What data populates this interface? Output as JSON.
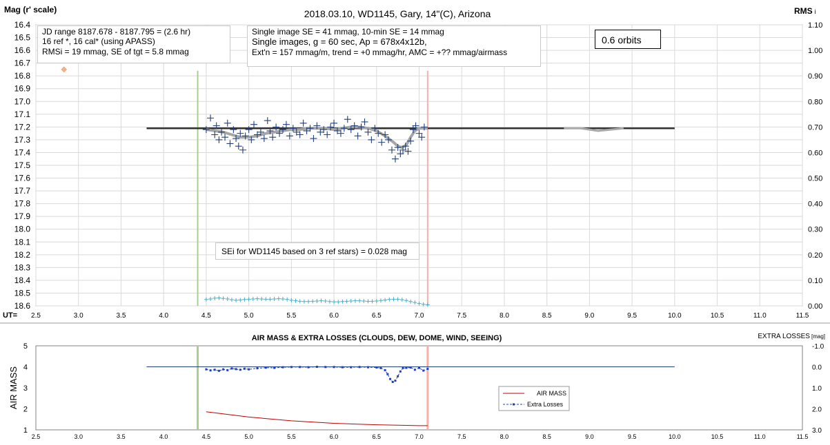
{
  "chart_data": [
    {
      "type": "scatter",
      "title": "2018.03.10,  WD1145, Gary, 14\"(C), Arizona",
      "ylabel": "Mag (r' scale)",
      "y2label": "RMS",
      "y2label_suffix": "i",
      "xlabel": "UT=",
      "xlim": [
        2.5,
        11.5
      ],
      "ylim": [
        18.6,
        16.4
      ],
      "y2lim": [
        0.0,
        1.1
      ],
      "x_ticks": [
        "2.5",
        "3.0",
        "3.5",
        "4.0",
        "4.5",
        "5.0",
        "5.5",
        "6.0",
        "6.5",
        "7.0",
        "7.5",
        "8.0",
        "8.5",
        "9.0",
        "9.5",
        "10.0",
        "10.5",
        "11.0",
        "11.5"
      ],
      "y_ticks": [
        "16.4",
        "16.5",
        "16.6",
        "16.7",
        "16.8",
        "16.9",
        "17.0",
        "17.1",
        "17.2",
        "17.3",
        "17.4",
        "17.5",
        "17.6",
        "17.7",
        "17.8",
        "17.9",
        "18.0",
        "18.1",
        "18.2",
        "18.3",
        "18.4",
        "18.5",
        "18.6"
      ],
      "y2_ticks": [
        "0.00",
        "0.10",
        "0.20",
        "0.30",
        "0.40",
        "0.50",
        "0.60",
        "0.70",
        "0.80",
        "0.90",
        "1.00",
        "1.10"
      ],
      "grid": true,
      "vlines": [
        {
          "x": 4.4,
          "color": "#a8d08d"
        },
        {
          "x": 7.1,
          "color": "#f4b1aa"
        }
      ],
      "reference_line": {
        "x": [
          3.8,
          10.0
        ],
        "y": 17.21,
        "color": "#333333"
      },
      "model_dip": {
        "x": [
          8.7,
          8.9,
          9.1,
          9.25,
          9.4
        ],
        "y": [
          17.21,
          17.21,
          17.23,
          17.22,
          17.21
        ],
        "color": "#aaaaaa"
      },
      "outlier": {
        "x": 2.83,
        "y": 16.75,
        "color": "#f4b183"
      },
      "trend": {
        "x": [
          4.5,
          4.6,
          4.7,
          4.8,
          4.9,
          5.0,
          5.1,
          5.2,
          5.3,
          5.4,
          5.5,
          5.6,
          5.7,
          5.8,
          5.9,
          6.0,
          6.1,
          6.2,
          6.3,
          6.4,
          6.5,
          6.6,
          6.7,
          6.75,
          6.8,
          6.85,
          6.9,
          6.95,
          7.0,
          7.05,
          7.1
        ],
        "y": [
          17.22,
          17.23,
          17.24,
          17.26,
          17.28,
          17.28,
          17.27,
          17.25,
          17.24,
          17.23,
          17.22,
          17.22,
          17.21,
          17.21,
          17.21,
          17.22,
          17.21,
          17.2,
          17.2,
          17.21,
          17.23,
          17.27,
          17.32,
          17.35,
          17.36,
          17.34,
          17.28,
          17.23,
          17.21,
          17.21,
          17.21
        ],
        "color": "#a6a6a6"
      },
      "series": [
        {
          "marker": "plus",
          "color": "#1f3e7a",
          "x": [
            4.5,
            4.55,
            4.6,
            4.62,
            4.65,
            4.68,
            4.72,
            4.75,
            4.78,
            4.82,
            4.85,
            4.88,
            4.9,
            4.93,
            4.96,
            5.0,
            5.03,
            5.06,
            5.1,
            5.14,
            5.18,
            5.22,
            5.25,
            5.28,
            5.32,
            5.36,
            5.4,
            5.44,
            5.48,
            5.52,
            5.56,
            5.6,
            5.64,
            5.68,
            5.72,
            5.76,
            5.8,
            5.84,
            5.88,
            5.92,
            5.96,
            6.0,
            6.04,
            6.08,
            6.12,
            6.16,
            6.2,
            6.24,
            6.28,
            6.32,
            6.36,
            6.4,
            6.44,
            6.48,
            6.52,
            6.56,
            6.6,
            6.64,
            6.68,
            6.72,
            6.75,
            6.78,
            6.81,
            6.84,
            6.87,
            6.9,
            6.93,
            6.96,
            7.0,
            7.03,
            7.06
          ],
          "y": [
            17.22,
            17.13,
            17.26,
            17.19,
            17.3,
            17.24,
            17.28,
            17.17,
            17.33,
            17.22,
            17.29,
            17.35,
            17.25,
            17.38,
            17.27,
            17.22,
            17.3,
            17.18,
            17.26,
            17.24,
            17.29,
            17.15,
            17.23,
            17.28,
            17.2,
            17.25,
            17.22,
            17.18,
            17.27,
            17.21,
            17.24,
            17.26,
            17.17,
            17.23,
            17.21,
            17.29,
            17.19,
            17.24,
            17.22,
            17.26,
            17.2,
            17.17,
            17.23,
            17.25,
            17.21,
            17.14,
            17.22,
            17.19,
            17.27,
            17.2,
            17.16,
            17.24,
            17.3,
            17.21,
            17.25,
            17.32,
            17.26,
            17.3,
            17.38,
            17.45,
            17.36,
            17.41,
            17.38,
            17.35,
            17.39,
            17.31,
            17.22,
            17.19,
            17.25,
            17.28,
            17.2
          ]
        },
        {
          "marker": "plus",
          "color": "#4bacc6",
          "axis": "y2",
          "x": [
            4.5,
            4.55,
            4.6,
            4.65,
            4.7,
            4.75,
            4.8,
            4.85,
            4.9,
            4.95,
            5.0,
            5.05,
            5.1,
            5.15,
            5.2,
            5.25,
            5.3,
            5.35,
            5.4,
            5.45,
            5.5,
            5.55,
            5.6,
            5.65,
            5.7,
            5.75,
            5.8,
            5.85,
            5.9,
            5.95,
            6.0,
            6.05,
            6.1,
            6.15,
            6.2,
            6.25,
            6.3,
            6.35,
            6.4,
            6.45,
            6.5,
            6.55,
            6.6,
            6.65,
            6.7,
            6.75,
            6.8,
            6.85,
            6.9,
            6.95,
            7.0,
            7.05,
            7.1
          ],
          "y": [
            0.025,
            0.027,
            0.03,
            0.031,
            0.029,
            0.027,
            0.024,
            0.022,
            0.023,
            0.025,
            0.026,
            0.027,
            0.028,
            0.027,
            0.026,
            0.026,
            0.027,
            0.028,
            0.027,
            0.025,
            0.022,
            0.02,
            0.018,
            0.017,
            0.017,
            0.018,
            0.019,
            0.02,
            0.019,
            0.017,
            0.016,
            0.016,
            0.017,
            0.018,
            0.019,
            0.02,
            0.02,
            0.019,
            0.018,
            0.018,
            0.019,
            0.021,
            0.023,
            0.025,
            0.026,
            0.026,
            0.024,
            0.021,
            0.017,
            0.013,
            0.009,
            0.006,
            0.004
          ]
        }
      ],
      "annotations": {
        "box1": [
          "JD range  8187.678 - 8187.795  = (2.6 hr)",
          "16 ref *, 16 cal* (using APASS)",
          "RMSi = 19 mmag, SE of tgt = 5.8 mmag"
        ],
        "box2": [
          "Single image SE = 41 mmag, 10-min SE = 14 mmag",
          "Single images, g = 60 sec, Ap = 678x4x12b,",
          "Ext'n = 157  mmag/m, trend = +0 mmag/hr, AMC = +?? mmag/airmass"
        ],
        "orbits": "0.6 orbits",
        "sei": "SEi for WD1145 based on 3 ref stars) = 0.028 mag"
      }
    },
    {
      "type": "line",
      "title": "AIR MASS & EXTRA LOSSES (CLOUDS, DEW, DOME, WIND, SEEING)",
      "ylabel": "AIR MASS",
      "y2label_prefix": "EXTRA LOSSES",
      "y2label_unit": "[mag]",
      "xlim": [
        2.5,
        11.5
      ],
      "ylim": [
        1,
        5
      ],
      "y2lim": [
        3.0,
        -1.0
      ],
      "x_ticks": [
        "2.5",
        "3.0",
        "3.5",
        "4.0",
        "4.5",
        "5.0",
        "5.5",
        "6.0",
        "6.5",
        "7.0",
        "7.5",
        "8.0",
        "8.5",
        "9.0",
        "9.5",
        "10.0",
        "10.5",
        "11.0",
        "11.5"
      ],
      "y_ticks": [
        "1",
        "2",
        "3",
        "4",
        "5"
      ],
      "y2_ticks": [
        "3.0",
        "2.0",
        "1.0",
        "0.0",
        "-1.0"
      ],
      "vlines": [
        {
          "x": 4.4,
          "color": "#a8d08d"
        },
        {
          "x": 7.1,
          "color": "#f4b1aa"
        }
      ],
      "zero_line": {
        "x": [
          3.8,
          10.0
        ],
        "y2": 0.0,
        "color": "#1f3e7a"
      },
      "legend": {
        "position": "right",
        "entries": [
          "AIR MASS",
          "Extra Losses"
        ]
      },
      "series": [
        {
          "name": "AIR MASS",
          "color": "#c00000",
          "x": [
            4.5,
            5.0,
            5.5,
            6.0,
            6.5,
            7.0,
            7.1
          ],
          "y": [
            1.86,
            1.61,
            1.43,
            1.31,
            1.24,
            1.2,
            1.2
          ]
        },
        {
          "name": "Extra Losses",
          "color": "#1f3fbf",
          "axis": "y2",
          "x": [
            4.5,
            4.55,
            4.6,
            4.65,
            4.7,
            4.75,
            4.8,
            4.85,
            4.9,
            4.95,
            5.0,
            5.1,
            5.2,
            5.3,
            5.4,
            5.5,
            5.6,
            5.7,
            5.8,
            5.9,
            6.0,
            6.1,
            6.2,
            6.3,
            6.4,
            6.5,
            6.55,
            6.6,
            6.63,
            6.66,
            6.69,
            6.72,
            6.75,
            6.78,
            6.81,
            6.85,
            6.9,
            6.95,
            7.0,
            7.05,
            7.1
          ],
          "y": [
            0.12,
            0.17,
            0.14,
            0.19,
            0.12,
            0.16,
            0.08,
            0.11,
            0.14,
            0.09,
            0.12,
            0.07,
            0.04,
            0.05,
            0.02,
            0.01,
            0.01,
            0.02,
            0.0,
            0.01,
            0.01,
            0.02,
            0.02,
            0.01,
            0.02,
            0.03,
            0.06,
            0.16,
            0.35,
            0.58,
            0.72,
            0.66,
            0.45,
            0.22,
            0.06,
            0.05,
            0.03,
            0.14,
            0.05,
            0.18,
            0.1
          ]
        }
      ]
    }
  ]
}
